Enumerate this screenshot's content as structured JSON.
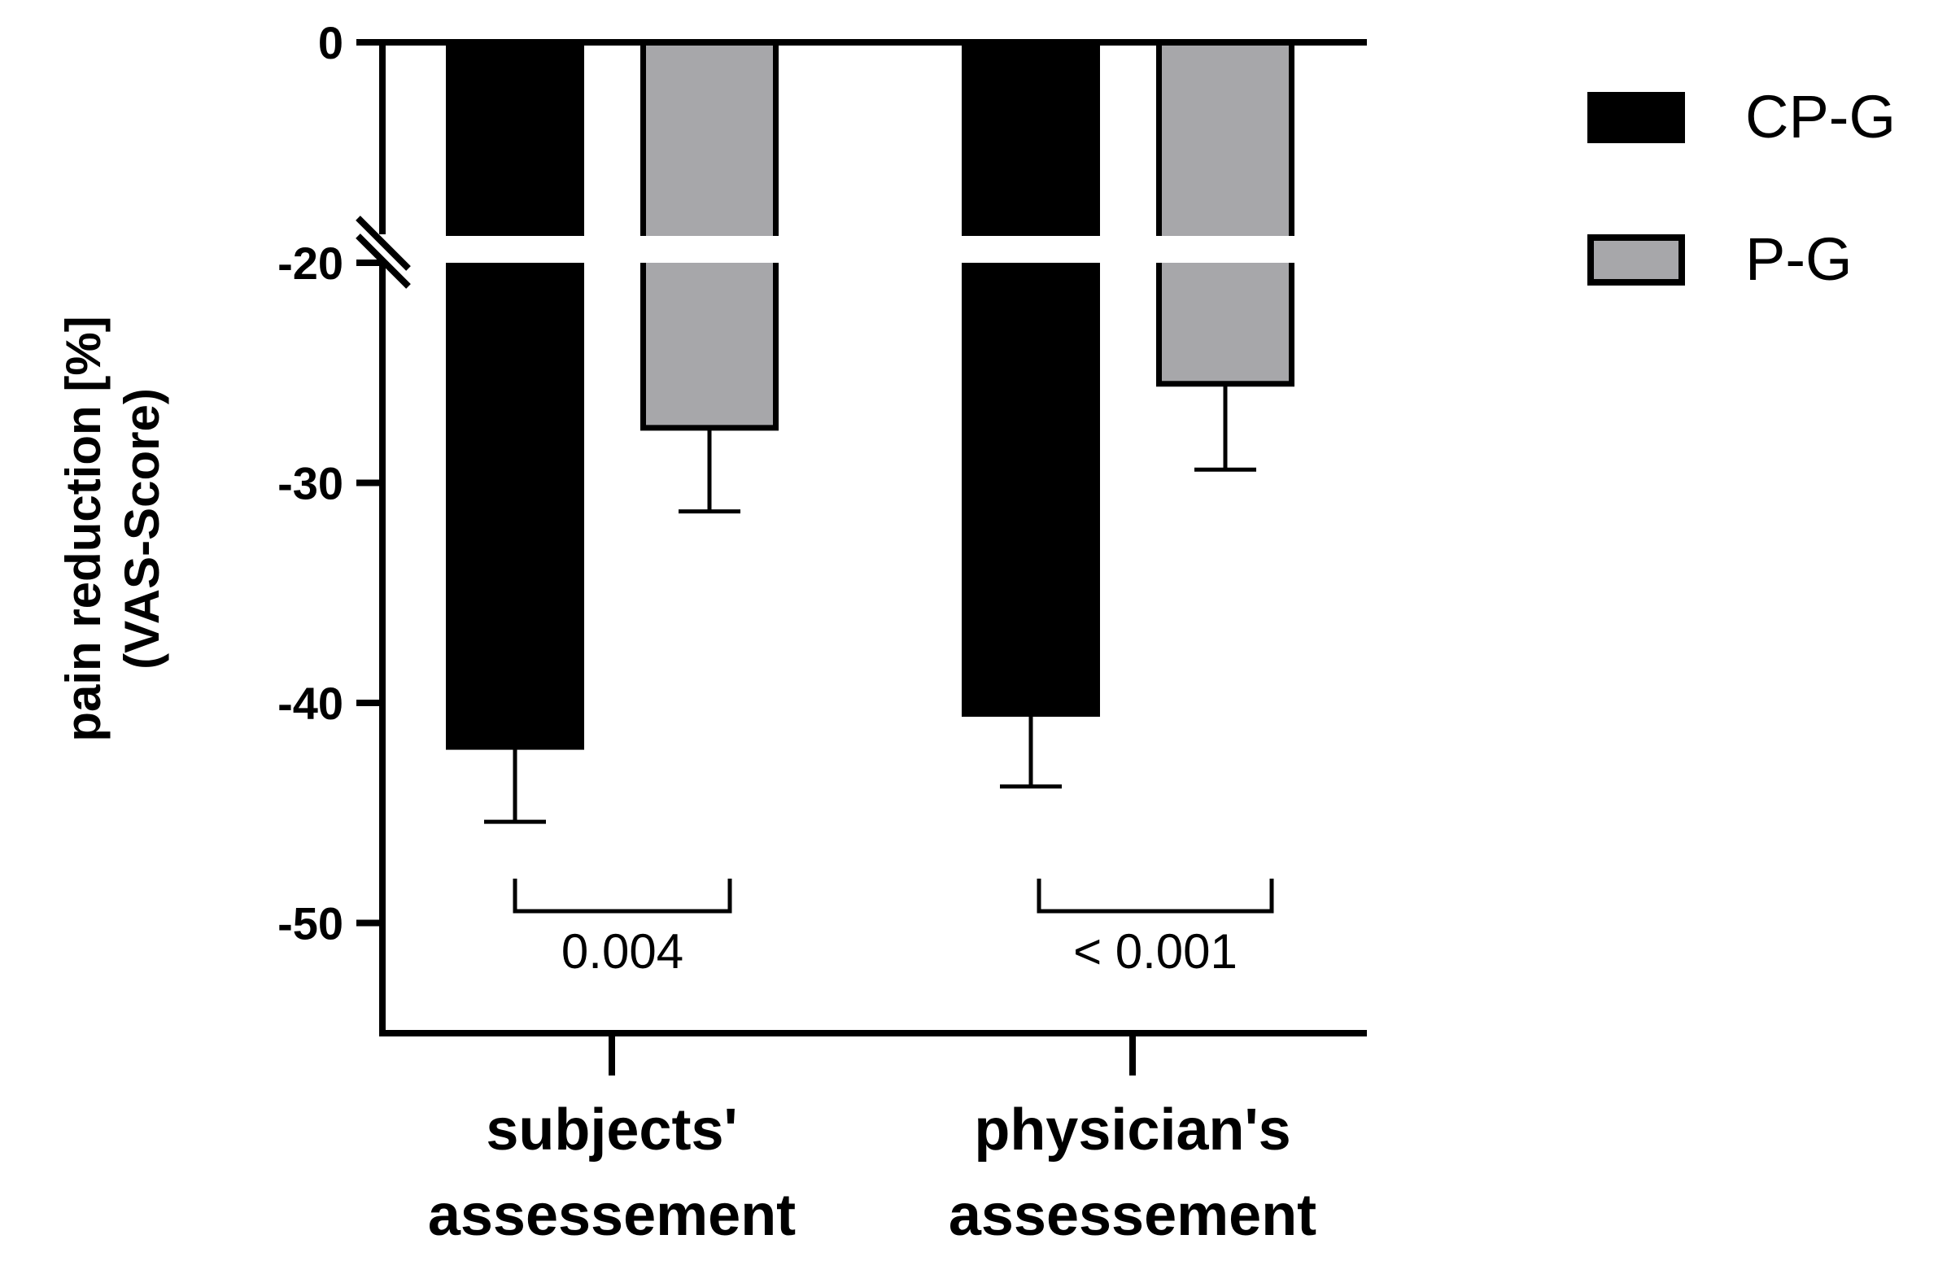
{
  "chart_data": {
    "type": "bar",
    "title": "",
    "ylabel_lines": [
      "pain reduction [%]",
      "(VAS-Score)"
    ],
    "xlabel": "",
    "categories": [
      {
        "lines": [
          "subjects'",
          "assessement"
        ]
      },
      {
        "lines": [
          "physician's",
          "assessement"
        ]
      }
    ],
    "series": [
      {
        "name": "CP-G",
        "color": "#000000",
        "values": [
          -42.0,
          -40.5
        ],
        "error": [
          3.4,
          3.3
        ]
      },
      {
        "name": "P-G",
        "color": "#a7a7aa",
        "values": [
          -27.5,
          -25.5
        ],
        "error": [
          3.8,
          3.9
        ]
      }
    ],
    "y_ticks": [
      0,
      -20,
      -30,
      -40,
      -50
    ],
    "y_tick_labels": [
      "0",
      "-20",
      "-30",
      "-40",
      "-50"
    ],
    "ylim": [
      -55,
      0
    ],
    "y_axis_break": {
      "between": [
        -10,
        -20
      ]
    },
    "p_values": [
      "0.004",
      "< 0.001"
    ],
    "legend_position": "top-right",
    "grid": false
  }
}
